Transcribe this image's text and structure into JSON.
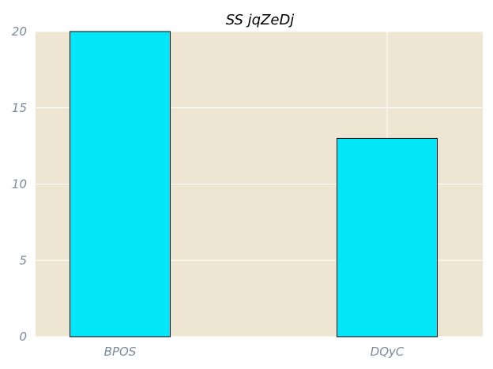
{
  "chart_data": {
    "type": "bar",
    "title": "SS  jqZeDj",
    "xlabel": "",
    "ylabel": "",
    "categories": [
      "BPOS",
      "DQyC"
    ],
    "values": [
      20,
      13
    ],
    "ylim": [
      0,
      20
    ],
    "yticks": [
      0,
      5,
      10,
      15,
      20
    ],
    "grid": true,
    "colors": {
      "bar": "#00e5f8",
      "bar_edge": "#000000",
      "plot_background": "#eee6d2",
      "grid": "#ffffff",
      "tick_label": "#7a8a99"
    }
  }
}
